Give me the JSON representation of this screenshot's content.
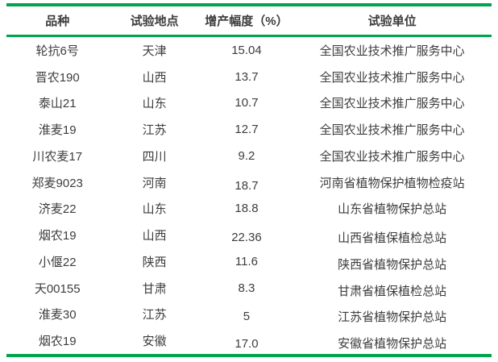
{
  "table": {
    "accent_color": "#00a44f",
    "text_color": "#3d3d3d",
    "columns": [
      {
        "label": "品种"
      },
      {
        "label": "试验地点"
      },
      {
        "label": "增产幅度（%）"
      },
      {
        "label": "试验单位"
      }
    ],
    "rows": [
      {
        "variety": "轮抗6号",
        "location": "天津",
        "increase": "15.04",
        "unit": "全国农业技术推广服务中心"
      },
      {
        "variety": "晋农190",
        "location": "山西",
        "increase": "13.7",
        "unit": "全国农业技术推广服务中心"
      },
      {
        "variety": "泰山21",
        "location": "山东",
        "increase": "10.7",
        "unit": "全国农业技术推广服务中心"
      },
      {
        "variety": "淮麦19",
        "location": "江苏",
        "increase": "12.7",
        "unit": "全国农业技术推广服务中心"
      },
      {
        "variety": "川农麦17",
        "location": "四川",
        "increase": "9.2",
        "unit": "全国农业技术推广服务中心"
      },
      {
        "variety": "郑麦9023",
        "location": "河南",
        "increase": "18.7",
        "unit": "河南省植物保护植物检疫站"
      },
      {
        "variety": "济麦22",
        "location": "山东",
        "increase": "18.8",
        "unit": "山东省植物保护总站"
      },
      {
        "variety": "烟农19",
        "location": "山西",
        "increase": "22.36",
        "unit": "山西省植保植检总站"
      },
      {
        "variety": "小偃22",
        "location": "陕西",
        "increase": "11.6",
        "unit": "陕西省植物保护总站"
      },
      {
        "variety": "天00155",
        "location": "甘肃",
        "increase": "8.3",
        "unit": "甘肃省植保植检总站"
      },
      {
        "variety": "淮麦30",
        "location": "江苏",
        "increase": "5",
        "unit": "江苏省植物保护总站"
      },
      {
        "variety": "烟农19",
        "location": "安徽",
        "increase": "17.0",
        "unit": "安徽省植物保护总站"
      }
    ]
  }
}
